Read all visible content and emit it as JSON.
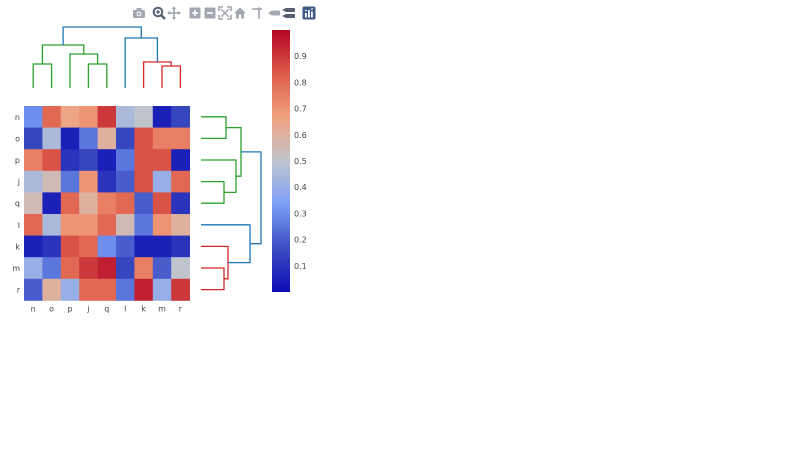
{
  "toolbar": {
    "buttons": [
      {
        "icon": "camera-icon",
        "title": "Download plot as a png"
      },
      {
        "icon": "zoom-icon",
        "title": "Zoom"
      },
      {
        "icon": "pan-icon",
        "title": "Pan"
      },
      {
        "icon": "zoom-in-icon",
        "title": "Zoom in"
      },
      {
        "icon": "zoom-out-icon",
        "title": "Zoom out"
      },
      {
        "icon": "autoscale-icon",
        "title": "Autoscale"
      },
      {
        "icon": "home-icon",
        "title": "Reset axes"
      },
      {
        "icon": "spike-lines-icon",
        "title": "Toggle Spike Lines"
      },
      {
        "icon": "hover-closest-icon",
        "title": "Show closest data on hover"
      },
      {
        "icon": "hover-compare-icon",
        "title": "Compare data on hover"
      },
      {
        "icon": "plotly-logo-icon",
        "title": "Produced with Plotly"
      }
    ],
    "active": "zoom-icon"
  },
  "chart_data": {
    "type": "heatmap",
    "title": "",
    "colorscale": [
      "#0d0db5",
      "#3b4cc0",
      "#7b9ff9",
      "#c0c4cd",
      "#f2a27e",
      "#dd5b49",
      "#b40426"
    ],
    "zmin": 0,
    "zmax": 1,
    "x_categories": [
      "n",
      "o",
      "p",
      "j",
      "q",
      "l",
      "k",
      "m",
      "r"
    ],
    "y_categories": [
      "n",
      "o",
      "p",
      "j",
      "q",
      "l",
      "k",
      "m",
      "r"
    ],
    "z": [
      [
        0.3,
        0.8,
        0.65,
        0.7,
        0.9,
        0.45,
        0.5,
        0.05,
        0.15
      ],
      [
        0.15,
        0.45,
        0.05,
        0.25,
        0.6,
        0.15,
        0.85,
        0.75,
        0.75
      ],
      [
        0.75,
        0.85,
        0.1,
        0.15,
        0.05,
        0.25,
        0.85,
        0.85,
        0.05
      ],
      [
        0.45,
        0.55,
        0.25,
        0.7,
        0.1,
        0.2,
        0.85,
        0.4,
        0.8
      ],
      [
        0.55,
        0.05,
        0.8,
        0.6,
        0.75,
        0.8,
        0.2,
        0.85,
        0.1
      ],
      [
        0.8,
        0.45,
        0.7,
        0.7,
        0.8,
        0.55,
        0.25,
        0.7,
        0.6
      ],
      [
        0.05,
        0.1,
        0.85,
        0.8,
        0.3,
        0.2,
        0.05,
        0.05,
        0.1
      ],
      [
        0.4,
        0.25,
        0.8,
        0.9,
        0.95,
        0.15,
        0.75,
        0.2,
        0.5
      ],
      [
        0.2,
        0.6,
        0.4,
        0.8,
        0.8,
        0.25,
        0.95,
        0.4,
        0.9
      ]
    ],
    "colorbar": {
      "ticks": [
        0.1,
        0.2,
        0.3,
        0.4,
        0.5,
        0.6,
        0.7,
        0.8,
        0.9
      ],
      "range": [
        0,
        1
      ]
    },
    "top_dendrogram": {
      "leaf_order": [
        "n",
        "o",
        "p",
        "j",
        "q",
        "l",
        "k",
        "m",
        "r"
      ],
      "colors": [
        "#2ca02c",
        "#1f77b4",
        "#d62728"
      ]
    },
    "right_dendrogram": {
      "leaf_order": [
        "n",
        "o",
        "p",
        "j",
        "q",
        "l",
        "k",
        "m",
        "r"
      ],
      "colors": [
        "#2ca02c",
        "#1f77b4",
        "#d62728"
      ]
    }
  }
}
